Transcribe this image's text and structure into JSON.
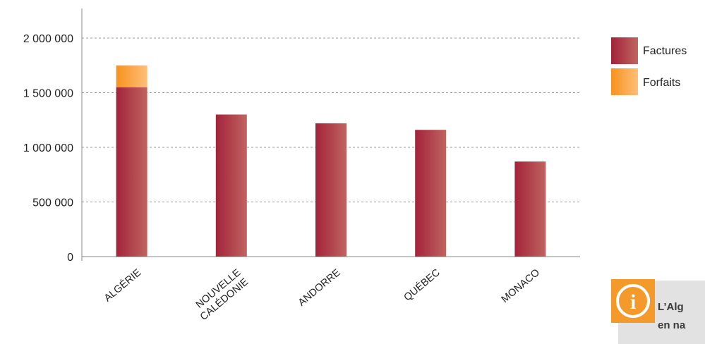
{
  "chart_data": {
    "type": "bar",
    "stacked": true,
    "categories": [
      "ALGÉRIE",
      "NOUVELLE\nCALÉDONIE",
      "ANDORRE",
      "QUÉBEC",
      "MONACO"
    ],
    "series": [
      {
        "name": "Factures",
        "values": [
          1550000,
          1300000,
          1220000,
          1160000,
          870000
        ]
      },
      {
        "name": "Forfaits",
        "values": [
          200000,
          0,
          0,
          0,
          0
        ]
      }
    ],
    "yticks": [
      0,
      500000,
      1000000,
      1500000,
      2000000
    ],
    "ytick_labels": [
      "0",
      "500 000",
      "1 000 000",
      "1 500 000",
      "2 000 000"
    ],
    "ylim": [
      0,
      2000000
    ],
    "grid": "horizontal dashed",
    "legend_position": "right"
  },
  "colors": {
    "factures_dark": "#a3233a",
    "factures_light": "#bf6460",
    "forfaits_dark": "#f7921e",
    "forfaits_light": "#fdbf78",
    "grid": "#9a9a9a",
    "axis": "#8a8a8a",
    "note_bg": "#e2e2e2",
    "info_orange": "#f39a2b"
  },
  "note": {
    "icon": "info-icon",
    "line1": "L’Alg",
    "line2": "en na"
  }
}
